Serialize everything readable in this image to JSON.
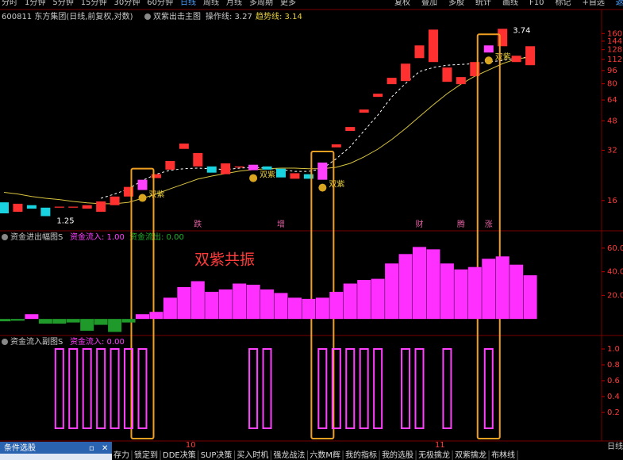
{
  "toolbar": {
    "periods": [
      "分时",
      "1分钟",
      "5分钟",
      "15分钟",
      "30分钟",
      "60分钟",
      "日线",
      "周线",
      "月线",
      "多周期",
      "更多"
    ],
    "active_period": 6,
    "tools": [
      "复权",
      "叠加",
      "多股",
      "统计",
      "画线",
      "F10",
      "标记",
      "+自选",
      "返"
    ]
  },
  "header": {
    "code": "600811 东方集团(日线,前复权,对数)",
    "indicator": "双紫出击主图",
    "op_line": "操作线: 3.27",
    "trend_line": "趋势线: 3.14"
  },
  "main": {
    "ylim": [
      11.5,
      185
    ],
    "log": true,
    "yticks": [
      160,
      144,
      128,
      112,
      96,
      80,
      64,
      48,
      32,
      16
    ],
    "candles": {
      "open": [
        15.6,
        13.7,
        15.0,
        14.5,
        14.5,
        14.5,
        14.3,
        13.7,
        15.0,
        16.9,
        18.5,
        21.8,
        24.5,
        32.6,
        25.6,
        25.6,
        23.0,
        25.2,
        24.3,
        25.6,
        24.8,
        21.6,
        23.0,
        21.3,
        33.3,
        41.8,
        53.7,
        66.8,
        79.6,
        83.1,
        114.0,
        108.0,
        82.2,
        79.6,
        88.8,
        123.1,
        134.3,
        108.0,
        103.4
      ],
      "close": [
        13.4,
        15.3,
        14.3,
        12.9,
        14.7,
        14.7,
        15.0,
        15.8,
        16.9,
        19.3,
        21.3,
        23.0,
        27.6,
        35.1,
        30.8,
        23.5,
        26.7,
        25.6,
        26.2,
        24.5,
        22.0,
        23.3,
        21.6,
        27.0,
        34.7,
        44.1,
        56.1,
        69.8,
        86.9,
        105.6,
        135.8,
        168.9,
        100.1,
        87.8,
        108.0,
        135.8,
        170.8,
        117.8,
        134.3
      ]
    },
    "up_color": "#ff3030",
    "down_color": "#19d4e0",
    "highlight_color": "#ff40ff",
    "highlight": [
      10,
      18,
      23,
      35
    ],
    "ma": [
      {
        "color": "#ffffff",
        "dash": true,
        "values": [
          null,
          null,
          null,
          null,
          null,
          null,
          null,
          16.5,
          17.5,
          18.8,
          21.1,
          23.0,
          24.3,
          24.8,
          25.0,
          24.8,
          24.5,
          25.0,
          25.3,
          25.0,
          24.5,
          23.9,
          23.9,
          24.8,
          28.5,
          33.6,
          41.8,
          52.0,
          66.8,
          80.4,
          94.7,
          100.1,
          103.4,
          104.5,
          105.6,
          108.0,
          110.4,
          114.0,
          115.4
        ]
      },
      {
        "color": "#d8c440",
        "dash": false,
        "values": [
          17.9,
          17.5,
          16.9,
          16.5,
          16.2,
          15.8,
          15.5,
          15.3,
          15.3,
          15.6,
          16.5,
          17.5,
          18.8,
          20.1,
          21.5,
          22.4,
          23.2,
          24.0,
          24.5,
          24.8,
          25.0,
          25.0,
          24.8,
          24.8,
          25.3,
          26.7,
          29.2,
          32.5,
          37.1,
          43.2,
          50.9,
          59.9,
          69.8,
          79.6,
          88.8,
          96.8,
          105.6,
          112.8,
          115.4
        ]
      }
    ],
    "low_label": "1.25",
    "low_index": 3,
    "high_label": "3.74",
    "high_index": 36,
    "signal_label": "双紫",
    "events": [
      {
        "label": "跌",
        "index": 14
      },
      {
        "label": "增",
        "index": 20
      },
      {
        "label": "财",
        "index": 30
      },
      {
        "label": "腾",
        "index": 33
      },
      {
        "label": "涨",
        "index": 35
      }
    ],
    "boxes": [
      10,
      23,
      35
    ],
    "box_color": "#f0a020"
  },
  "flow": {
    "title": "资金进出幅图S",
    "inflow": "资金流入: 1.00",
    "outflow": "资金流出: 0.00",
    "ylim": [
      -12,
      70
    ],
    "yticks": [
      {
        "value": 60,
        "label": "60.0"
      },
      {
        "value": 40,
        "label": "40.0"
      },
      {
        "value": 20,
        "label": "20.0"
      }
    ],
    "values": [
      -2,
      -1.5,
      4,
      -4,
      -4,
      -3,
      -10,
      -5,
      -11,
      -3,
      4,
      6,
      18,
      27,
      32,
      23,
      25,
      30,
      29,
      25,
      22,
      18,
      17,
      18,
      23,
      30,
      33,
      34,
      47,
      55,
      61,
      59,
      47,
      42,
      44,
      51,
      53,
      46,
      37
    ],
    "pos_color": "#ff30ff",
    "neg_color": "#1f9a2a",
    "annotation": "双紫共振"
  },
  "inflow": {
    "title": "资金流入副图S",
    "legend": "资金流入: 0.00",
    "ylim": [
      -0.15,
      1.08
    ],
    "yticks": [
      {
        "value": 1,
        "label": "1.0"
      },
      {
        "value": 0.8,
        "label": "0.8"
      },
      {
        "value": 0.6,
        "label": "0.6"
      },
      {
        "value": 0.4,
        "label": "0.4"
      },
      {
        "value": 0.2,
        "label": "0.2"
      }
    ],
    "values": [
      0,
      0,
      0,
      0,
      1,
      1,
      1,
      1,
      1,
      1,
      1,
      0,
      0,
      0,
      0,
      0,
      0,
      0,
      1,
      1,
      0,
      0,
      0,
      1,
      1,
      1,
      1,
      1,
      0,
      1,
      1,
      0,
      1,
      0,
      0,
      1,
      0,
      0,
      0
    ],
    "color": "#ff40ff"
  },
  "months": [
    {
      "label": "10",
      "index": 13
    },
    {
      "label": "11",
      "index": 31
    }
  ],
  "popup": "条件选股",
  "period_tab": "日线",
  "tabs": [
    "存力",
    "锁定到",
    "DDE决策",
    "SUP决策",
    "买入时机",
    "强龙战法",
    "六数M辉",
    "我的指标",
    "我的选股",
    "无极擒龙",
    "双紫擒龙",
    "布林线"
  ]
}
